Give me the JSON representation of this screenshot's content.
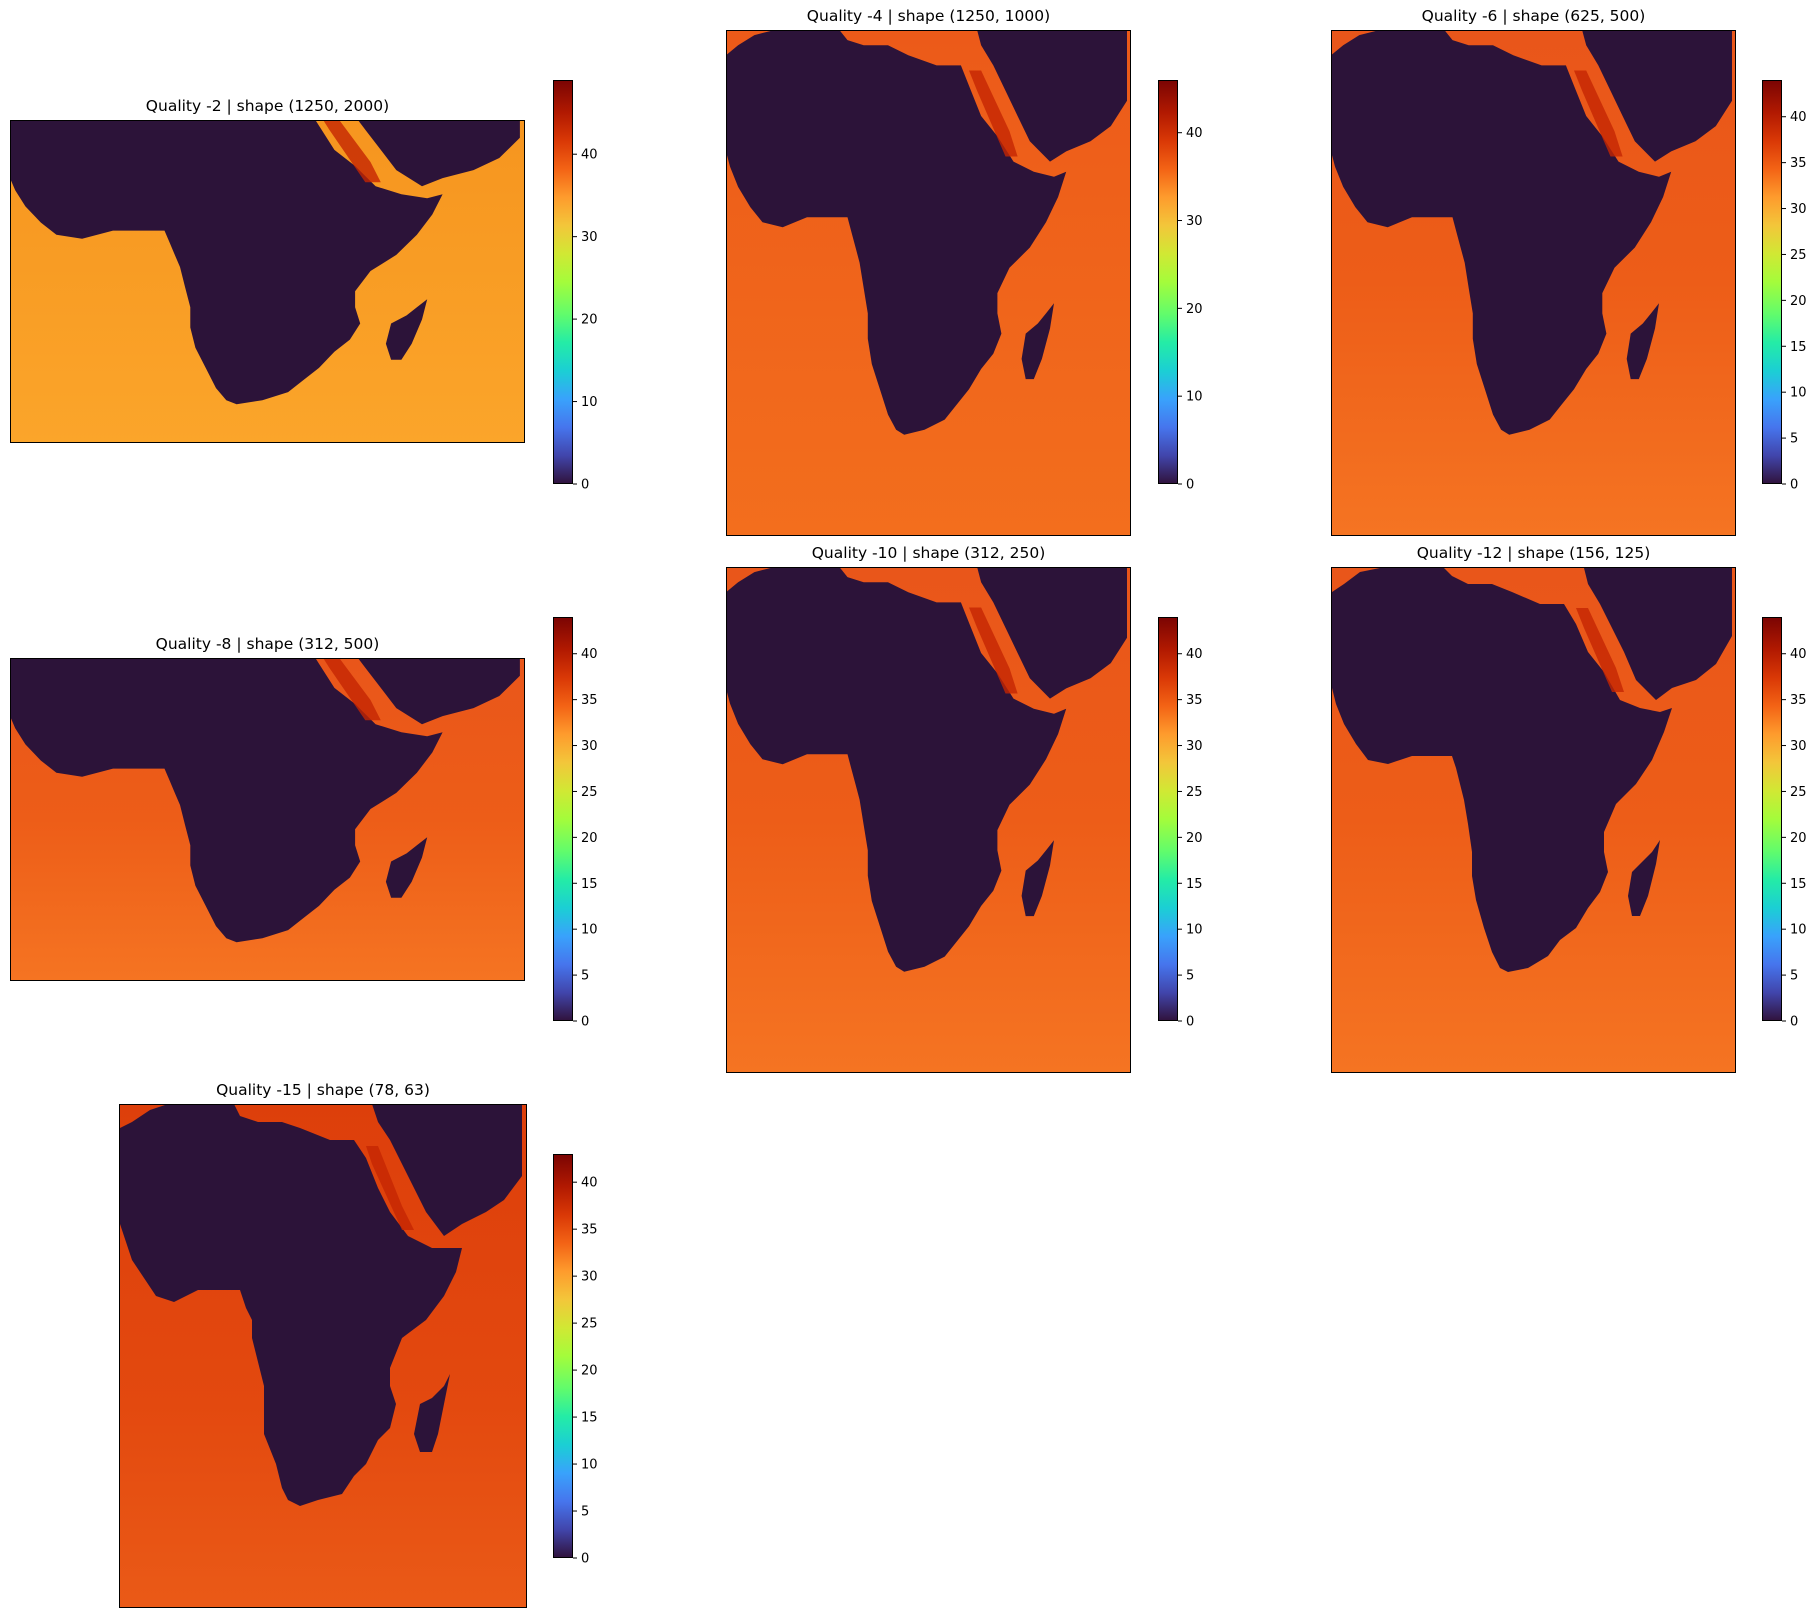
{
  "figure": {
    "colormap": "turbo",
    "land_color": "#2c1339",
    "axis_frame_color": "#000000"
  },
  "chart_data": [
    {
      "type": "heatmap",
      "title": "Quality -2 | shape (1250, 2000)",
      "colorbar_ticks": [
        "0",
        "10",
        "20",
        "30",
        "40"
      ],
      "vmin": 0,
      "vmax": 49,
      "ocean_value_min": 33,
      "ocean_value_max": 36
    },
    {
      "type": "heatmap",
      "title": "Quality -4 | shape (1250, 1000)",
      "colorbar_ticks": [
        "0",
        "10",
        "20",
        "30",
        "40"
      ],
      "vmin": 0,
      "vmax": 46,
      "ocean_value_min": 36,
      "ocean_value_max": 39
    },
    {
      "type": "heatmap",
      "title": "Quality -6 | shape (625, 500)",
      "colorbar_ticks": [
        "0",
        "5",
        "10",
        "15",
        "20",
        "25",
        "30",
        "35",
        "40"
      ],
      "vmin": 0,
      "vmax": 44,
      "ocean_value_min": 35,
      "ocean_value_max": 39
    },
    {
      "type": "heatmap",
      "title": "Quality -8 | shape (312, 500)",
      "colorbar_ticks": [
        "0",
        "5",
        "10",
        "15",
        "20",
        "25",
        "30",
        "35",
        "40"
      ],
      "vmin": 0,
      "vmax": 44,
      "ocean_value_min": 35,
      "ocean_value_max": 38
    },
    {
      "type": "heatmap",
      "title": "Quality -10 | shape (312, 250)",
      "colorbar_ticks": [
        "0",
        "5",
        "10",
        "15",
        "20",
        "25",
        "30",
        "35",
        "40"
      ],
      "vmin": 0,
      "vmax": 44,
      "ocean_value_min": 35,
      "ocean_value_max": 38
    },
    {
      "type": "heatmap",
      "title": "Quality -12 | shape (156, 125)",
      "colorbar_ticks": [
        "0",
        "5",
        "10",
        "15",
        "20",
        "25",
        "30",
        "35",
        "40"
      ],
      "vmin": 0,
      "vmax": 44,
      "ocean_value_min": 35,
      "ocean_value_max": 38
    },
    {
      "type": "heatmap",
      "title": "Quality -15 | shape (78, 63)",
      "colorbar_ticks": [
        "0",
        "5",
        "10",
        "15",
        "20",
        "25",
        "30",
        "35",
        "40"
      ],
      "vmin": 0,
      "vmax": 43,
      "ocean_value_min": 36,
      "ocean_value_max": 39
    }
  ]
}
